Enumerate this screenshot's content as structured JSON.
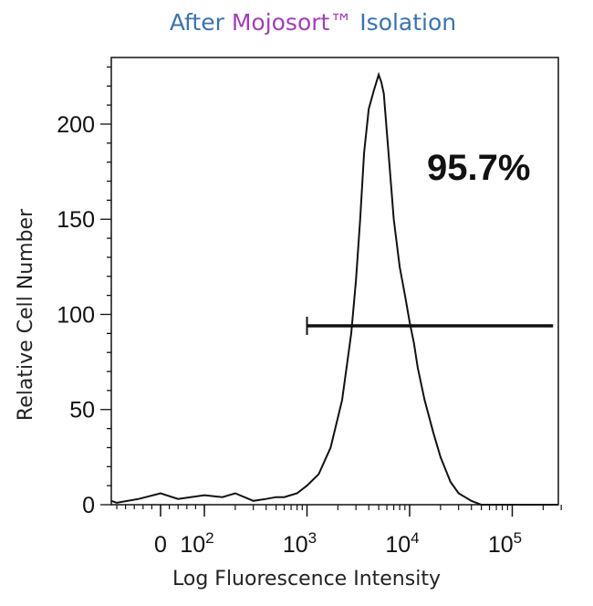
{
  "title": {
    "part1": "After",
    "part2": "Mojosort™",
    "part3": "Isolation",
    "colors": {
      "part1": "#3b73ad",
      "part2": "#a23fb4",
      "part3": "#3b73ad"
    }
  },
  "chart_data": {
    "type": "line",
    "title": "After Mojosort™ Isolation",
    "xlabel": "Log Fluorescence Intensity",
    "ylabel": "Relative Cell Number",
    "x_scale": "biexponential",
    "ylim": [
      0,
      235
    ],
    "x_ticks": [
      {
        "value": 0,
        "label": "0",
        "exp": ""
      },
      {
        "value": 100,
        "label": "10",
        "exp": "2"
      },
      {
        "value": 1000,
        "label": "10",
        "exp": "3"
      },
      {
        "value": 10000,
        "label": "10",
        "exp": "4"
      },
      {
        "value": 100000,
        "label": "10",
        "exp": "5"
      }
    ],
    "y_ticks": [
      0,
      50,
      100,
      150,
      200
    ],
    "series": [
      {
        "x": [
          -200,
          -100,
          -50,
          0,
          40,
          100,
          150,
          200,
          300,
          400,
          500,
          600,
          800,
          1000,
          1300,
          1700,
          2200,
          2700,
          3000,
          3300,
          3600,
          4000,
          4500,
          5000,
          5300,
          5600,
          6000,
          6500,
          7000,
          8000,
          9000,
          10000,
          11000,
          12000,
          14000,
          17000,
          20000,
          25000,
          30000,
          40000,
          50000
        ],
        "y": [
          2,
          1,
          3,
          6,
          3,
          5,
          4,
          6,
          2,
          3,
          4,
          4,
          6,
          10,
          16,
          30,
          55,
          90,
          118,
          150,
          185,
          208,
          218,
          226,
          222,
          216,
          196,
          172,
          150,
          125,
          110,
          96,
          85,
          72,
          55,
          38,
          25,
          12,
          6,
          2,
          0
        ]
      }
    ],
    "gate": {
      "label": "95.7%",
      "x_start": 1000,
      "x_end": 250000,
      "y": 94
    }
  }
}
